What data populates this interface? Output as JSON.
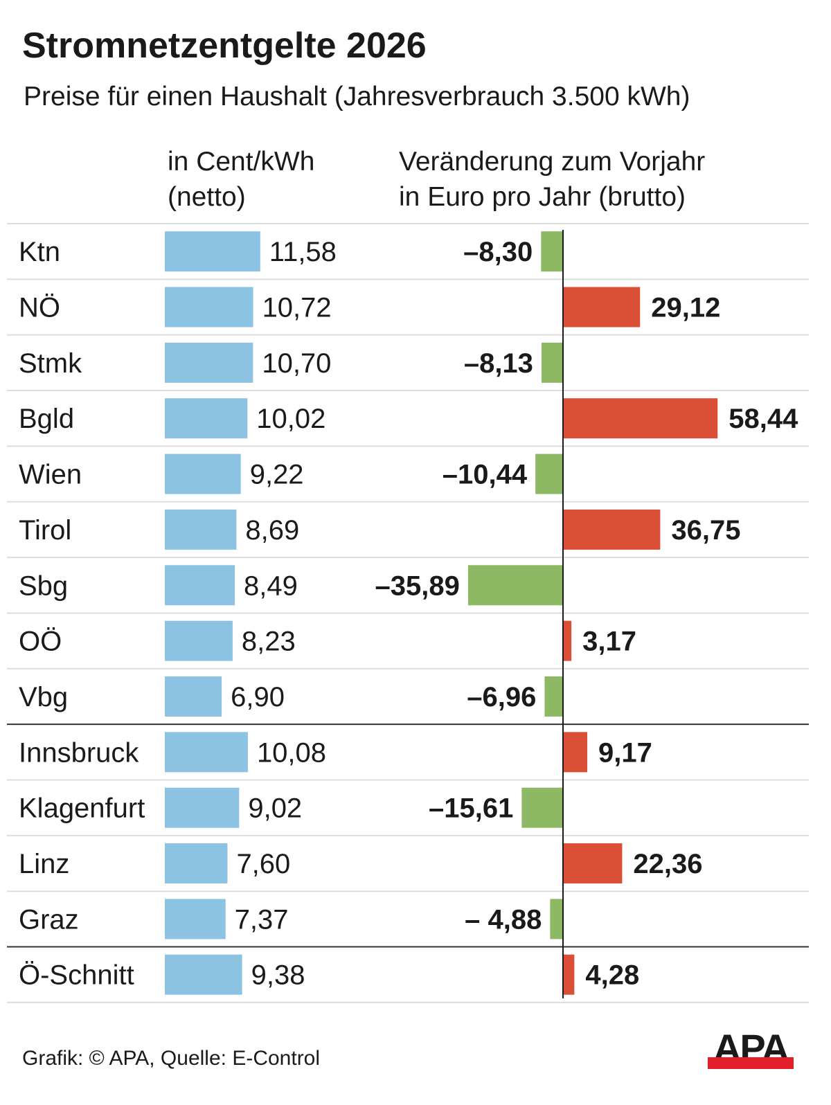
{
  "title": "Stromnetzentgelte 2026",
  "subtitle": "Preise für einen Haushalt (Jahresverbrauch 3.500 kWh)",
  "col1_header": [
    "in Cent/kWh",
    "(netto)"
  ],
  "col2_header": [
    "Veränderung zum Vorjahr",
    "in Euro pro Jahr (brutto)"
  ],
  "source": "Grafik: © APA, Quelle: E-Control",
  "logo": "APA",
  "colors": {
    "price": "#8cc3e2",
    "decrease": "#8db964",
    "increase": "#dc4f37",
    "logo_red": "#e3202a"
  },
  "chart_data": [
    {
      "type": "bar",
      "orientation": "horizontal",
      "unit": "Cent/kWh (netto)",
      "categories": [
        "Ktn",
        "NÖ",
        "Stmk",
        "Bgld",
        "Wien",
        "Tirol",
        "Sbg",
        "OÖ",
        "Vbg",
        "Innsbruck",
        "Klagenfurt",
        "Linz",
        "Graz",
        "Ö-Schnitt"
      ],
      "values": [
        11.58,
        10.72,
        10.7,
        10.02,
        9.22,
        8.69,
        8.49,
        8.23,
        6.9,
        10.08,
        9.02,
        7.6,
        7.37,
        9.38
      ],
      "labels": [
        "11,58",
        "10,72",
        "10,70",
        "10,02",
        "9,22",
        "8,69",
        "8,49",
        "8,23",
        "6,90",
        "10,08",
        "9,02",
        "7,60",
        "7,37",
        "9,38"
      ]
    },
    {
      "type": "bar",
      "orientation": "horizontal",
      "unit": "Euro pro Jahr (brutto)",
      "categories": [
        "Ktn",
        "NÖ",
        "Stmk",
        "Bgld",
        "Wien",
        "Tirol",
        "Sbg",
        "OÖ",
        "Vbg",
        "Innsbruck",
        "Klagenfurt",
        "Linz",
        "Graz",
        "Ö-Schnitt"
      ],
      "values": [
        -8.3,
        29.12,
        -8.13,
        58.44,
        -10.44,
        36.75,
        -35.89,
        3.17,
        -6.96,
        9.17,
        -15.61,
        22.36,
        -4.88,
        4.28
      ],
      "labels": [
        "–8,30",
        "29,12",
        "–8,13",
        "58,44",
        "–10,44",
        "36,75",
        "–35,89",
        "3,17",
        "–6,96",
        "9,17",
        "–15,61",
        "22,36",
        "– 4,88",
        "4,28"
      ]
    }
  ]
}
